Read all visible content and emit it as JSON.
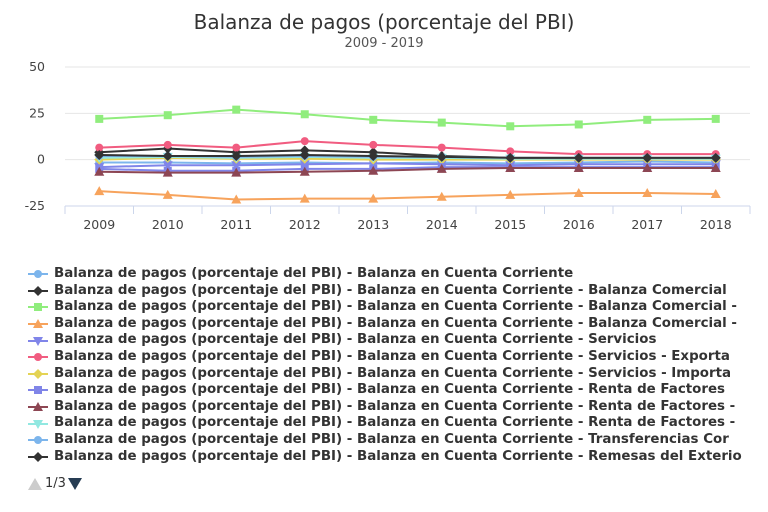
{
  "chart_data": {
    "type": "line",
    "title": "Balanza de pagos (porcentaje del PBI)",
    "subtitle": "2009 - 2019",
    "x": [
      "2009",
      "2010",
      "2011",
      "2012",
      "2013",
      "2014",
      "2015",
      "2016",
      "2017",
      "2018"
    ],
    "ylim": [
      -25,
      50
    ],
    "yticks": [
      "50",
      "25",
      "0",
      "-25"
    ],
    "grid": true,
    "legend_placement": "bottom",
    "series": [
      {
        "name": "Balanza de pagos (porcentaje del PBI) - Balanza en Cuenta Corriente",
        "color": "#7cb5ec",
        "marker": "circle",
        "values": [
          -1.5,
          -1.5,
          -2.0,
          -1.5,
          -2.0,
          -1.5,
          -2.0,
          -1.5,
          -1.0,
          -1.5
        ]
      },
      {
        "name": "Balanza de pagos (porcentaje del PBI) - Balanza en Cuenta Corriente - Balanza Comercial",
        "color": "#333333",
        "marker": "diamond",
        "values": [
          4,
          6,
          4,
          5,
          4,
          2,
          1,
          1,
          1,
          1
        ]
      },
      {
        "name": "Balanza de pagos (porcentaje del PBI) - Balanza en Cuenta Corriente - Balanza Comercial -",
        "color": "#90ed7d",
        "marker": "square",
        "values": [
          22,
          24,
          27,
          24.5,
          21.5,
          20,
          18,
          19,
          21.5,
          22
        ]
      },
      {
        "name": "Balanza de pagos (porcentaje del PBI) - Balanza en Cuenta Corriente - Balanza Comercial -",
        "color": "#f7a35c",
        "marker": "triangle",
        "values": [
          -17,
          -19,
          -21.5,
          -21,
          -21,
          -20,
          -19,
          -18,
          -18,
          -18.5
        ]
      },
      {
        "name": "Balanza de pagos (porcentaje del PBI) - Balanza en Cuenta Corriente - Servicios",
        "color": "#8085e9",
        "marker": "triangle-down",
        "values": [
          -4,
          -3,
          -3,
          -2.5,
          -2,
          -2.5,
          -3,
          -2.5,
          -2.5,
          -2.5
        ]
      },
      {
        "name": "Balanza de pagos (porcentaje del PBI) - Balanza en Cuenta Corriente - Servicios - Exporta",
        "color": "#f15c80",
        "marker": "circle",
        "values": [
          6.5,
          8,
          6.5,
          10,
          8,
          6.5,
          4.5,
          3,
          3,
          3
        ]
      },
      {
        "name": "Balanza de pagos (porcentaje del PBI) - Balanza en Cuenta Corriente - Servicios - Importa",
        "color": "#e4d354",
        "marker": "diamond",
        "values": [
          0,
          1,
          0.5,
          0.5,
          0,
          0,
          0,
          0,
          0,
          0
        ]
      },
      {
        "name": "Balanza de pagos (porcentaje del PBI) - Balanza en Cuenta Corriente - Renta de Factores",
        "color": "#8085e8",
        "marker": "square",
        "values": [
          -5,
          -6,
          -6,
          -5,
          -5,
          -4,
          -4,
          -4,
          -4,
          -4
        ]
      },
      {
        "name": "Balanza de pagos (porcentaje del PBI) - Balanza en Cuenta Corriente - Renta de Factores -",
        "color": "#8d4653",
        "marker": "triangle",
        "values": [
          -6.5,
          -7,
          -7,
          -6.5,
          -6,
          -5,
          -4.5,
          -4.5,
          -4.5,
          -4.5
        ]
      },
      {
        "name": "Balanza de pagos (porcentaje del PBI) - Balanza en Cuenta Corriente - Renta de Factores -",
        "color": "#91e8e1",
        "marker": "triangle-down",
        "values": [
          1,
          1.5,
          1,
          1.5,
          1,
          1,
          0.5,
          0.5,
          0.5,
          0.5
        ]
      },
      {
        "name": "Balanza de pagos (porcentaje del PBI) - Balanza en Cuenta Corriente - Transferencias Cor",
        "color": "#7cb5ec",
        "marker": "circle",
        "values": [
          2,
          2,
          1.5,
          2,
          1.5,
          1.5,
          1,
          1,
          1,
          1
        ]
      },
      {
        "name": "Balanza de pagos (porcentaje del PBI) - Balanza en Cuenta Corriente - Remesas del Exterio",
        "color": "#333333",
        "marker": "diamond",
        "values": [
          2.5,
          2,
          2,
          2.5,
          2,
          1.5,
          1,
          1,
          1,
          1
        ]
      }
    ]
  },
  "pager": {
    "label": "1/3"
  }
}
